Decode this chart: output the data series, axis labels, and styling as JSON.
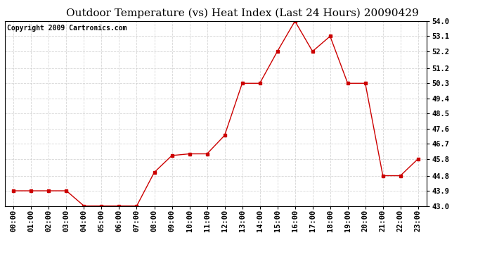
{
  "title": "Outdoor Temperature (vs) Heat Index (Last 24 Hours) 20090429",
  "copyright": "Copyright 2009 Cartronics.com",
  "x_labels": [
    "00:00",
    "01:00",
    "02:00",
    "03:00",
    "04:00",
    "05:00",
    "06:00",
    "07:00",
    "08:00",
    "09:00",
    "10:00",
    "11:00",
    "12:00",
    "13:00",
    "14:00",
    "15:00",
    "16:00",
    "17:00",
    "18:00",
    "19:00",
    "20:00",
    "21:00",
    "22:00",
    "23:00"
  ],
  "y_values": [
    43.9,
    43.9,
    43.9,
    43.9,
    43.0,
    43.0,
    43.0,
    43.0,
    45.0,
    46.0,
    46.1,
    46.1,
    47.2,
    50.3,
    50.3,
    52.2,
    54.0,
    52.2,
    53.1,
    50.3,
    50.3,
    44.8,
    44.8,
    45.8
  ],
  "y_min": 43.0,
  "y_max": 54.0,
  "y_ticks": [
    43.0,
    43.9,
    44.8,
    45.8,
    46.7,
    47.6,
    48.5,
    49.4,
    50.3,
    51.2,
    52.2,
    53.1,
    54.0
  ],
  "line_color": "#cc0000",
  "marker": "s",
  "marker_size": 3,
  "background_color": "#ffffff",
  "grid_color": "#cccccc",
  "title_fontsize": 11,
  "copyright_fontsize": 7,
  "tick_fontsize": 7.5,
  "ytick_fontsize": 7.5
}
